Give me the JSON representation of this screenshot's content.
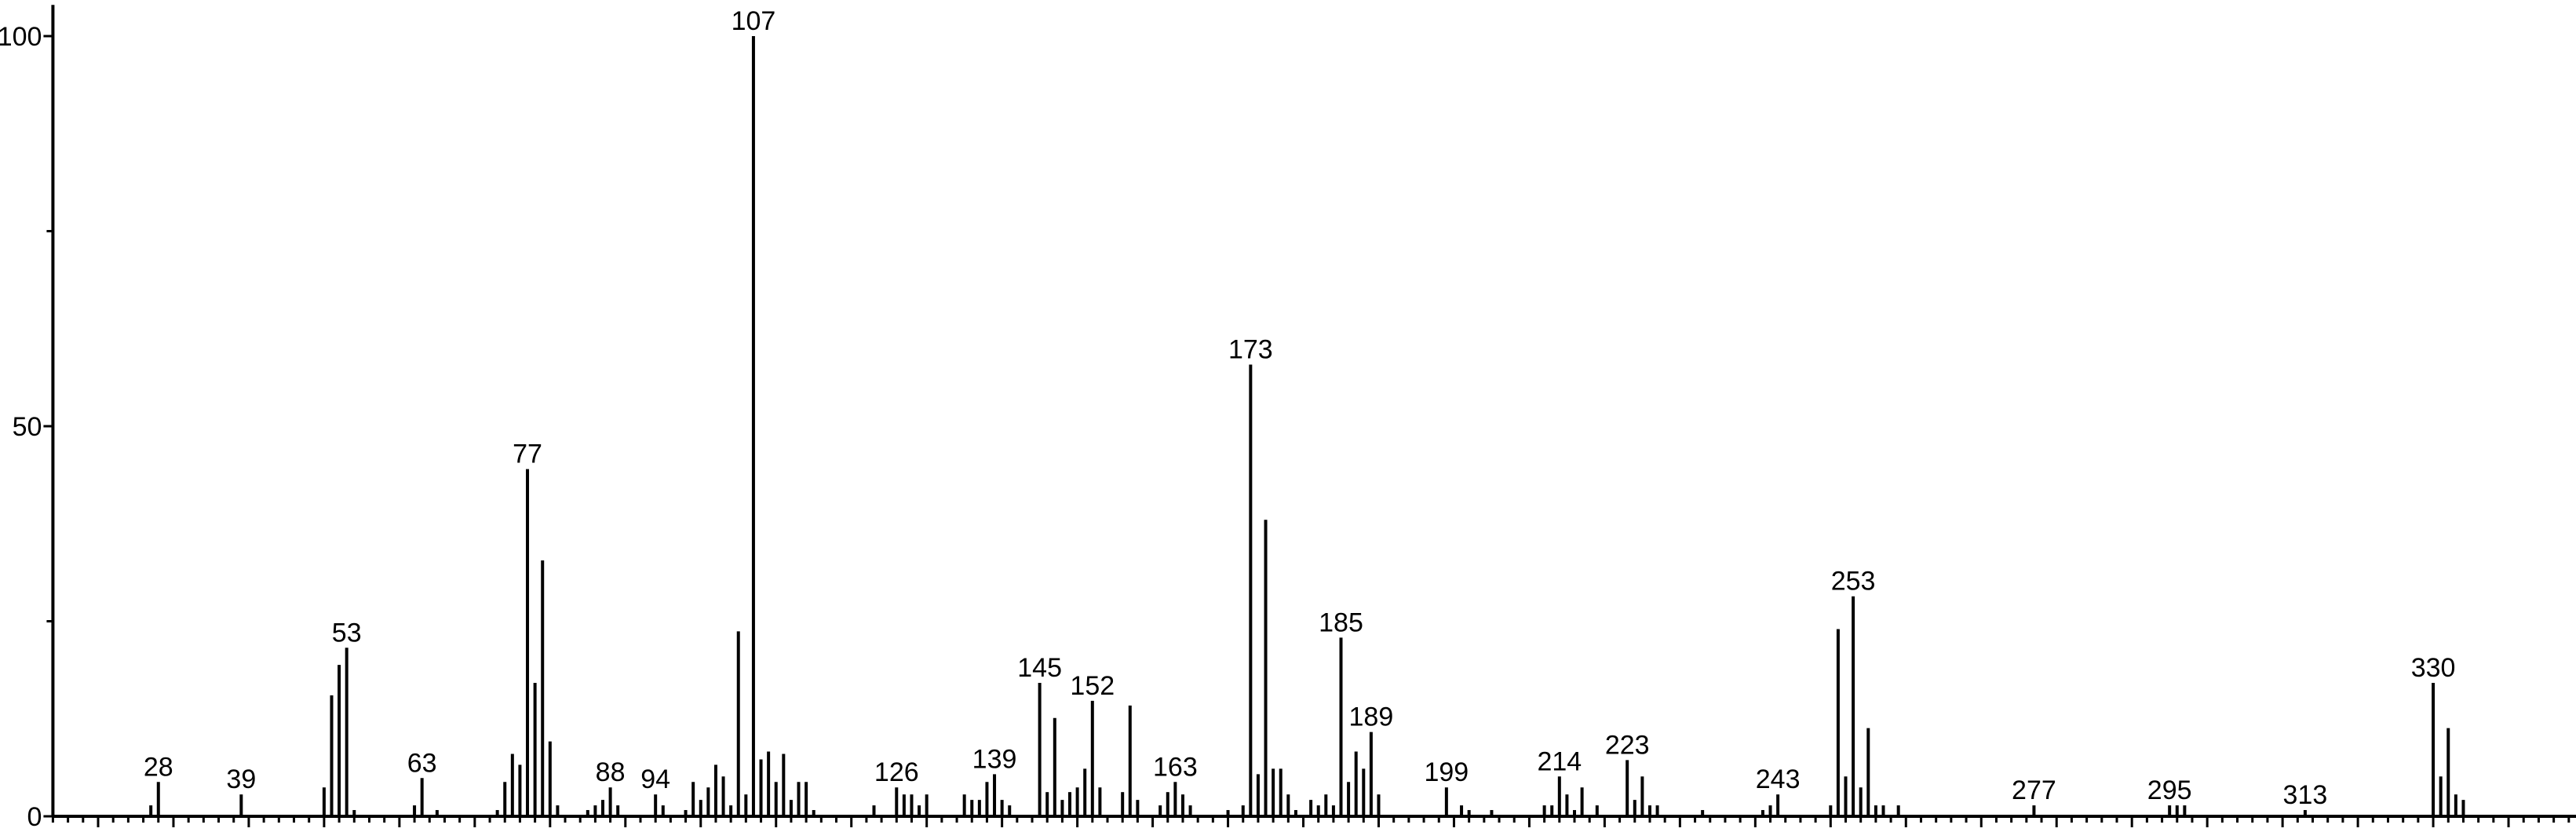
{
  "chart_data": {
    "type": "bar",
    "title": "",
    "xlabel": "",
    "ylabel": "",
    "xlim": [
      14,
      349
    ],
    "ylim": [
      0,
      104
    ],
    "x_ticks": [
      20,
      30,
      40,
      50,
      60,
      70,
      80,
      90,
      100,
      110,
      120,
      130,
      140,
      150,
      160,
      170,
      180,
      190,
      200,
      210,
      220,
      230,
      240,
      250,
      260,
      270,
      280,
      290,
      300,
      310,
      320,
      330,
      340
    ],
    "y_ticks": [
      0,
      50,
      100
    ],
    "grid": false,
    "colors": {
      "peaks": "#000000",
      "background": "#ffffff"
    },
    "peaks": [
      [
        27,
        1.4
      ],
      [
        28,
        4.4
      ],
      [
        39,
        2.8
      ],
      [
        50,
        3.7
      ],
      [
        51,
        15.5
      ],
      [
        52,
        19.4
      ],
      [
        53,
        21.6
      ],
      [
        54,
        0.8
      ],
      [
        62,
        1.4
      ],
      [
        63,
        4.9
      ],
      [
        65,
        0.8
      ],
      [
        73,
        0.8
      ],
      [
        74,
        4.4
      ],
      [
        75,
        8.0
      ],
      [
        76,
        6.6
      ],
      [
        77,
        44.5
      ],
      [
        78,
        17.1
      ],
      [
        79,
        32.8
      ],
      [
        80,
        9.6
      ],
      [
        81,
        1.4
      ],
      [
        85,
        0.8
      ],
      [
        86,
        1.4
      ],
      [
        87,
        2.1
      ],
      [
        88,
        3.7
      ],
      [
        89,
        1.4
      ],
      [
        94,
        2.8
      ],
      [
        95,
        1.4
      ],
      [
        98,
        0.8
      ],
      [
        99,
        4.4
      ],
      [
        100,
        2.1
      ],
      [
        101,
        3.7
      ],
      [
        102,
        6.6
      ],
      [
        103,
        5.1
      ],
      [
        104,
        1.4
      ],
      [
        105,
        23.7
      ],
      [
        106,
        2.8
      ],
      [
        107,
        100
      ],
      [
        108,
        7.3
      ],
      [
        109,
        8.3
      ],
      [
        110,
        4.4
      ],
      [
        111,
        8.0
      ],
      [
        112,
        2.1
      ],
      [
        113,
        4.4
      ],
      [
        114,
        4.4
      ],
      [
        115,
        0.8
      ],
      [
        123,
        1.4
      ],
      [
        126,
        3.7
      ],
      [
        127,
        2.8
      ],
      [
        128,
        2.8
      ],
      [
        129,
        1.4
      ],
      [
        130,
        2.8
      ],
      [
        135,
        2.8
      ],
      [
        136,
        2.1
      ],
      [
        137,
        2.1
      ],
      [
        138,
        4.4
      ],
      [
        139,
        5.4
      ],
      [
        140,
        2.1
      ],
      [
        141,
        1.4
      ],
      [
        145,
        17.1
      ],
      [
        146,
        3.1
      ],
      [
        147,
        12.6
      ],
      [
        148,
        2.1
      ],
      [
        149,
        3.1
      ],
      [
        150,
        3.7
      ],
      [
        151,
        6.1
      ],
      [
        152,
        14.8
      ],
      [
        153,
        3.7
      ],
      [
        156,
        3.1
      ],
      [
        157,
        14.2
      ],
      [
        158,
        2.1
      ],
      [
        161,
        1.4
      ],
      [
        162,
        3.1
      ],
      [
        163,
        4.4
      ],
      [
        164,
        2.8
      ],
      [
        165,
        1.4
      ],
      [
        170,
        0.8
      ],
      [
        172,
        1.4
      ],
      [
        173,
        57.9
      ],
      [
        174,
        5.4
      ],
      [
        175,
        38.0
      ],
      [
        176,
        6.1
      ],
      [
        177,
        6.1
      ],
      [
        178,
        2.8
      ],
      [
        179,
        0.8
      ],
      [
        181,
        2.1
      ],
      [
        182,
        1.4
      ],
      [
        183,
        2.8
      ],
      [
        184,
        1.4
      ],
      [
        185,
        22.9
      ],
      [
        186,
        4.4
      ],
      [
        187,
        8.3
      ],
      [
        188,
        6.1
      ],
      [
        189,
        10.8
      ],
      [
        190,
        2.8
      ],
      [
        199,
        3.7
      ],
      [
        201,
        1.4
      ],
      [
        202,
        0.8
      ],
      [
        205,
        0.8
      ],
      [
        212,
        1.4
      ],
      [
        213,
        1.4
      ],
      [
        214,
        5.1
      ],
      [
        215,
        2.8
      ],
      [
        216,
        0.8
      ],
      [
        217,
        3.7
      ],
      [
        219,
        1.4
      ],
      [
        223,
        7.2
      ],
      [
        224,
        2.1
      ],
      [
        225,
        5.1
      ],
      [
        226,
        1.4
      ],
      [
        227,
        1.4
      ],
      [
        233,
        0.8
      ],
      [
        241,
        0.8
      ],
      [
        242,
        1.4
      ],
      [
        243,
        2.8
      ],
      [
        250,
        1.4
      ],
      [
        251,
        24.0
      ],
      [
        252,
        5.1
      ],
      [
        253,
        28.2
      ],
      [
        254,
        3.7
      ],
      [
        255,
        11.3
      ],
      [
        256,
        1.4
      ],
      [
        257,
        1.4
      ],
      [
        259,
        1.4
      ],
      [
        277,
        1.4
      ],
      [
        295,
        1.4
      ],
      [
        296,
        1.4
      ],
      [
        297,
        1.4
      ],
      [
        313,
        0.8
      ],
      [
        330,
        17.1
      ],
      [
        331,
        5.1
      ],
      [
        332,
        11.3
      ],
      [
        333,
        2.8
      ],
      [
        334,
        2.1
      ]
    ],
    "peak_labels": [
      "28",
      "39",
      "53",
      "63",
      "77",
      "88",
      "94",
      "107",
      "126",
      "139",
      "145",
      "152",
      "163",
      "173",
      "185",
      "189",
      "199",
      "214",
      "223",
      "243",
      "253",
      "277",
      "295",
      "313",
      "330"
    ]
  }
}
